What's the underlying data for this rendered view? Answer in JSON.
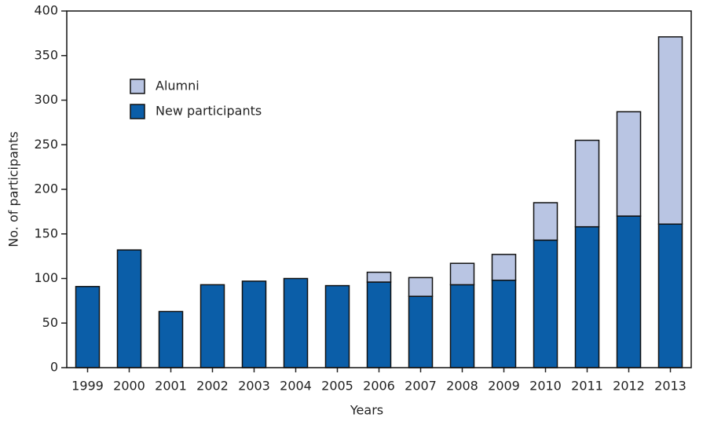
{
  "chart_data": {
    "type": "stacked_bar",
    "x_label": "Years",
    "y_label": "No. of participants",
    "categories": [
      "1999",
      "2000",
      "2001",
      "2002",
      "2003",
      "2004",
      "2005",
      "2006",
      "2007",
      "2008",
      "2009",
      "2010",
      "2011",
      "2012",
      "2013"
    ],
    "series": [
      {
        "name": "New participants",
        "color": "#0b5ea8",
        "values": [
          91,
          132,
          63,
          93,
          97,
          100,
          92,
          96,
          80,
          93,
          98,
          143,
          158,
          170,
          161
        ]
      },
      {
        "name": "Alumni",
        "color": "#b9c5e3",
        "values": [
          0,
          0,
          0,
          0,
          0,
          0,
          0,
          11,
          21,
          24,
          29,
          42,
          97,
          117,
          210
        ]
      }
    ],
    "legend_order": [
      1,
      0
    ],
    "ylim": [
      0,
      400
    ],
    "yticks": [
      0,
      50,
      100,
      150,
      200,
      250,
      300,
      350,
      400
    ],
    "legend": "upper left"
  }
}
